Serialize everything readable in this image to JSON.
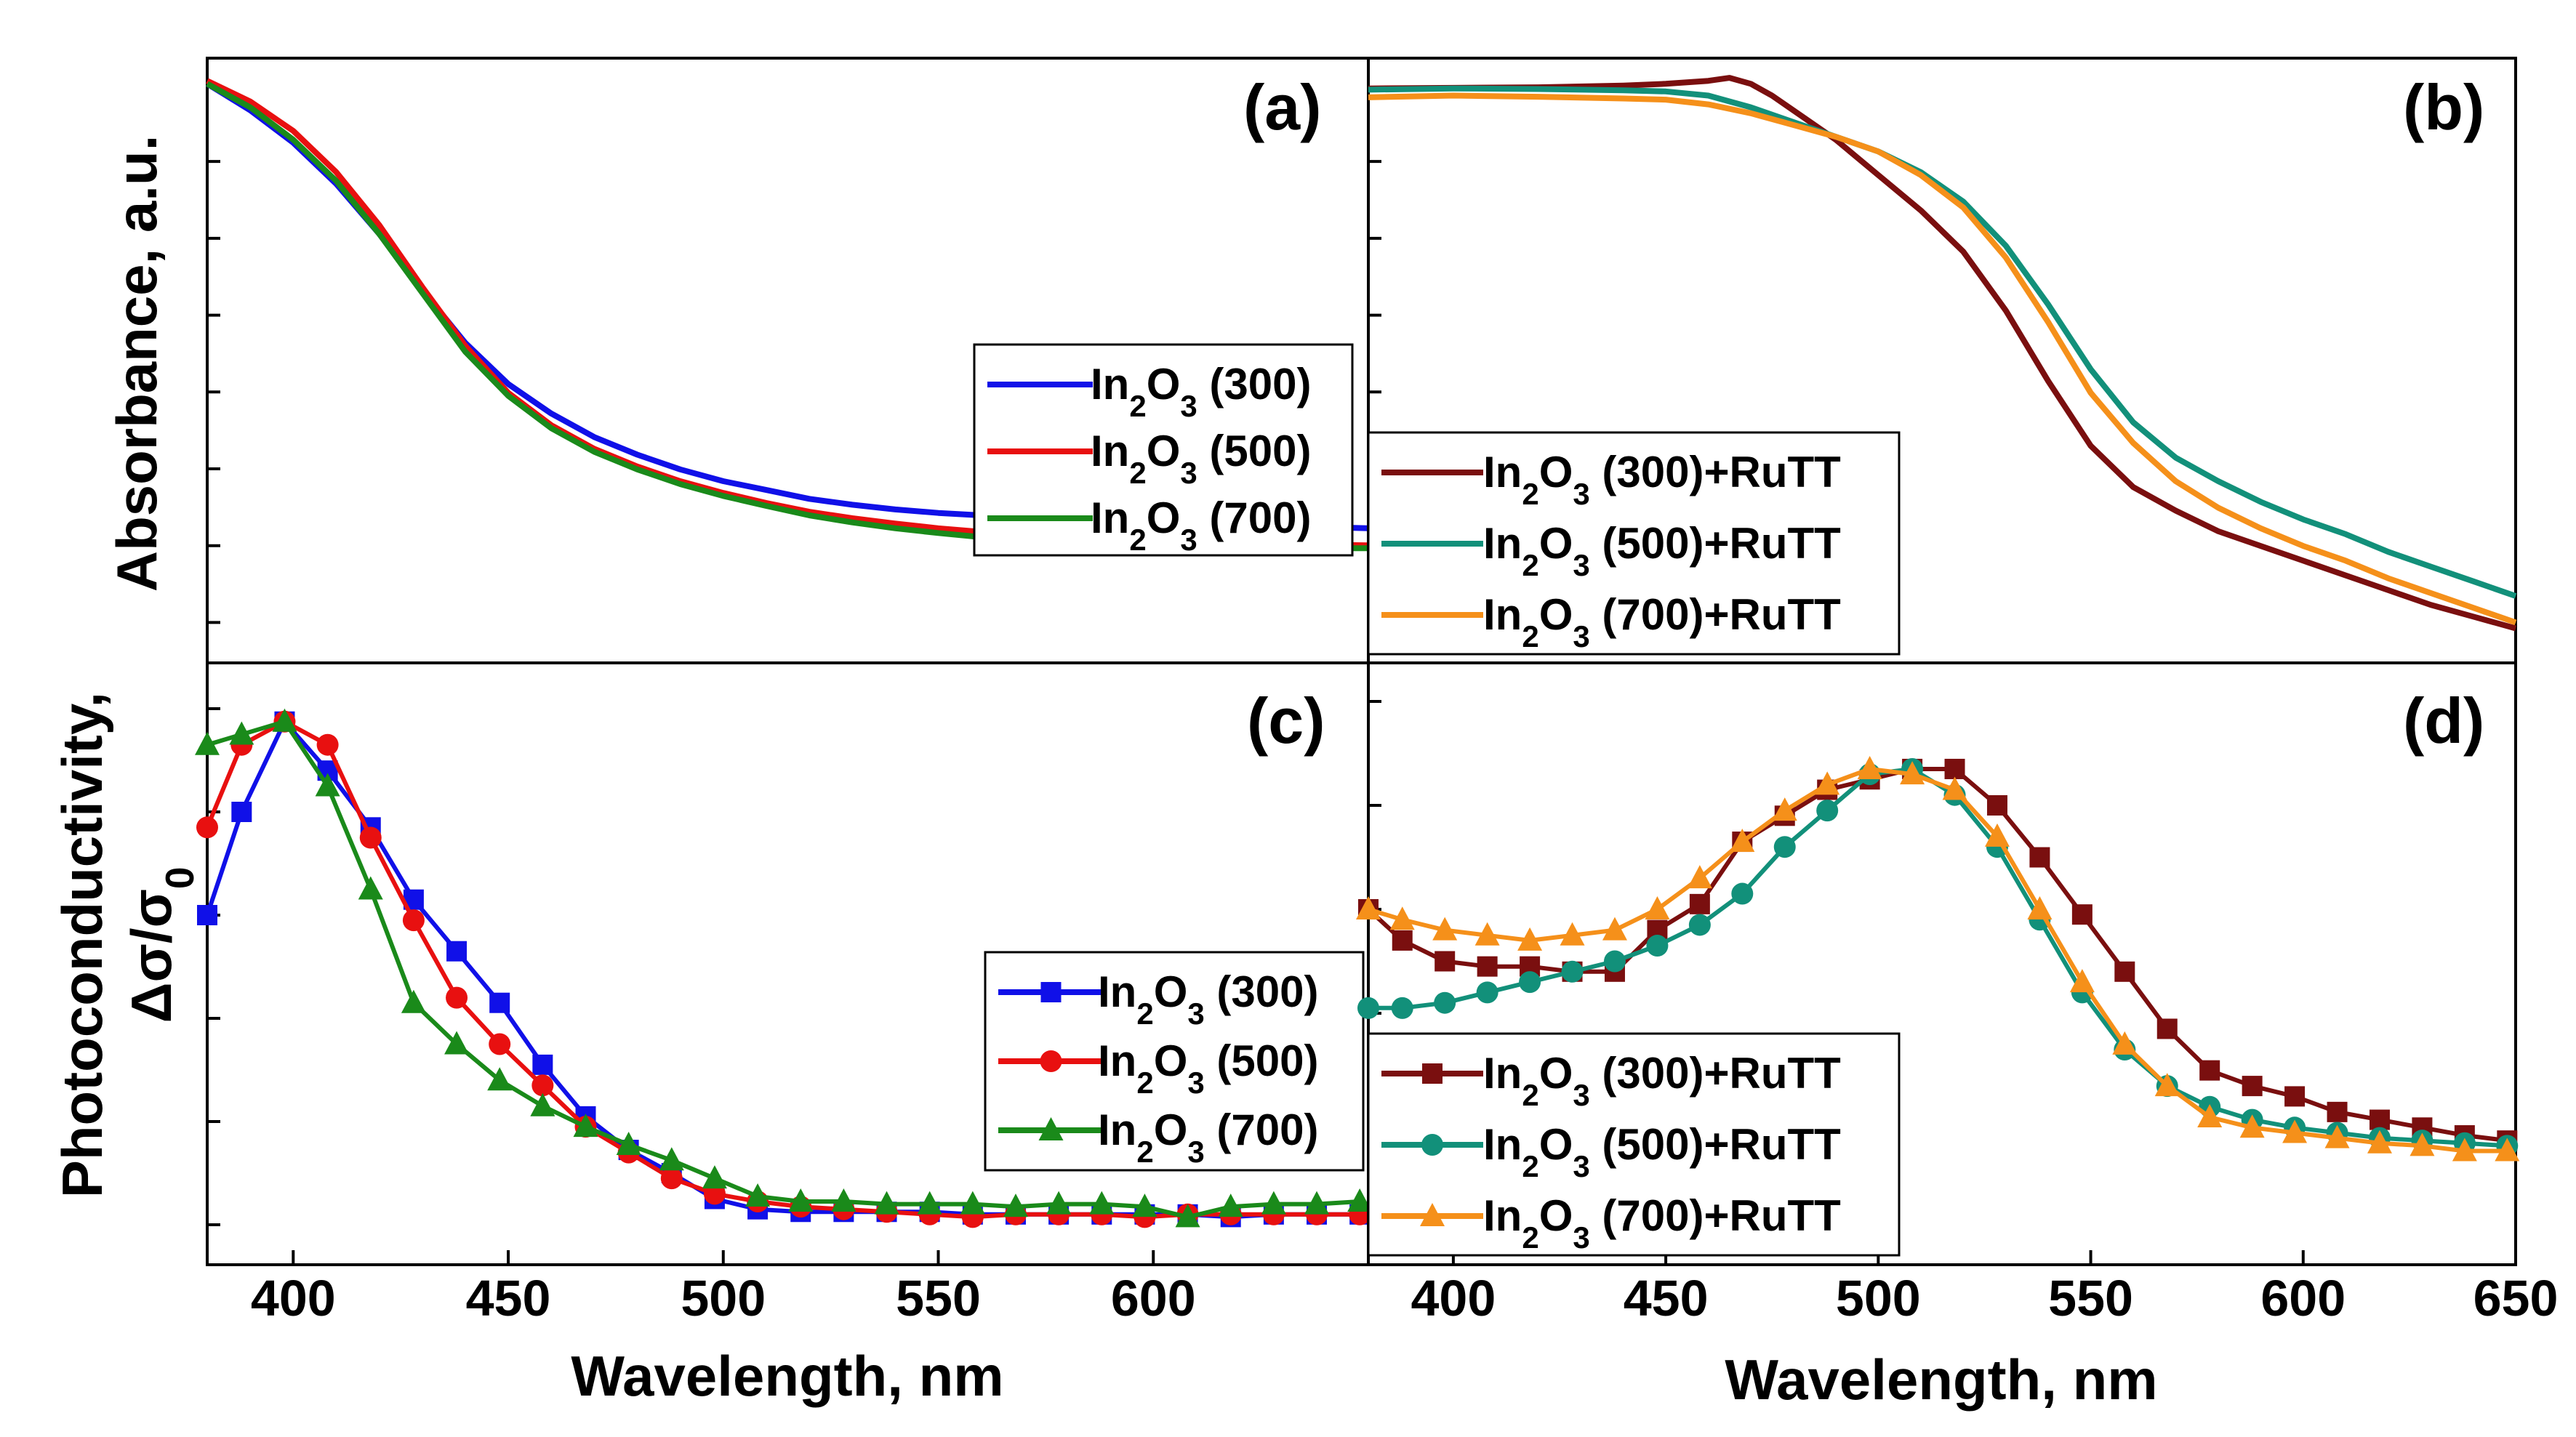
{
  "chart_data": [
    {
      "panel": "(a)",
      "type": "line",
      "ylabel": "Absorbance, a.u.",
      "xlim": [
        380,
        650
      ],
      "ylim": [
        0,
        1
      ],
      "legend_position": "center-right",
      "series": [
        {
          "name": "In2O3 (300)",
          "name_parts": {
            "a": "In",
            "s1": "2",
            "b": "O",
            "s2": "3",
            "c": " (300)"
          },
          "color": "#1010e8",
          "x": [
            380,
            390,
            400,
            410,
            420,
            430,
            440,
            450,
            460,
            470,
            480,
            490,
            500,
            510,
            520,
            530,
            540,
            550,
            560,
            570,
            580,
            590,
            600,
            610,
            620,
            630,
            640,
            650
          ],
          "y": [
            0.975,
            0.93,
            0.875,
            0.805,
            0.72,
            0.625,
            0.535,
            0.465,
            0.415,
            0.375,
            0.345,
            0.32,
            0.3,
            0.285,
            0.27,
            0.26,
            0.252,
            0.246,
            0.242,
            0.238,
            0.235,
            0.232,
            0.23,
            0.228,
            0.226,
            0.224,
            0.222,
            0.22
          ]
        },
        {
          "name": "In2O3 (500)",
          "name_parts": {
            "a": "In",
            "s1": "2",
            "b": "O",
            "s2": "3",
            "c": " (500)"
          },
          "color": "#e81010",
          "x": [
            380,
            390,
            400,
            410,
            420,
            430,
            440,
            450,
            460,
            470,
            480,
            490,
            500,
            510,
            520,
            530,
            540,
            550,
            560,
            570,
            580,
            590,
            600,
            610,
            620,
            630,
            640,
            650
          ],
          "y": [
            0.98,
            0.945,
            0.895,
            0.825,
            0.735,
            0.63,
            0.53,
            0.45,
            0.395,
            0.355,
            0.325,
            0.3,
            0.28,
            0.263,
            0.248,
            0.237,
            0.228,
            0.22,
            0.214,
            0.209,
            0.205,
            0.202,
            0.199,
            0.197,
            0.195,
            0.194,
            0.192,
            0.191
          ]
        },
        {
          "name": "In2O3 (700)",
          "name_parts": {
            "a": "In",
            "s1": "2",
            "b": "O",
            "s2": "3",
            "c": " (700)"
          },
          "color": "#1a8a1a",
          "x": [
            380,
            390,
            400,
            410,
            420,
            430,
            440,
            450,
            460,
            470,
            480,
            490,
            500,
            510,
            520,
            530,
            540,
            550,
            560,
            570,
            580,
            590,
            600,
            610,
            620,
            630,
            640,
            650
          ],
          "y": [
            0.975,
            0.935,
            0.88,
            0.81,
            0.72,
            0.62,
            0.52,
            0.445,
            0.39,
            0.35,
            0.32,
            0.295,
            0.275,
            0.258,
            0.242,
            0.23,
            0.22,
            0.212,
            0.205,
            0.2,
            0.195,
            0.192,
            0.19,
            0.188,
            0.187,
            0.186,
            0.186,
            0.186
          ]
        }
      ]
    },
    {
      "panel": "(b)",
      "type": "line",
      "xlim": [
        380,
        650
      ],
      "ylim": [
        0,
        1
      ],
      "legend_position": "center-left",
      "series": [
        {
          "name": "In2O3 (300)+RuTT",
          "name_parts": {
            "a": "In",
            "s1": "2",
            "b": "O",
            "s2": "3",
            "c": " (300)+RuTT"
          },
          "color": "#7a0f0f",
          "x": [
            380,
            400,
            420,
            440,
            450,
            460,
            465,
            470,
            475,
            480,
            490,
            500,
            510,
            520,
            530,
            540,
            550,
            560,
            570,
            580,
            590,
            600,
            610,
            620,
            630,
            640,
            650
          ],
          "y": [
            0.967,
            0.968,
            0.969,
            0.972,
            0.975,
            0.98,
            0.985,
            0.975,
            0.955,
            0.93,
            0.88,
            0.82,
            0.76,
            0.69,
            0.59,
            0.47,
            0.36,
            0.29,
            0.25,
            0.215,
            0.19,
            0.165,
            0.14,
            0.115,
            0.09,
            0.07,
            0.05
          ]
        },
        {
          "name": "In2O3 (500)+RuTT",
          "name_parts": {
            "a": "In",
            "s1": "2",
            "b": "O",
            "s2": "3",
            "c": " (500)+RuTT"
          },
          "color": "#12907a",
          "x": [
            380,
            400,
            420,
            440,
            450,
            460,
            470,
            480,
            490,
            500,
            510,
            520,
            530,
            540,
            550,
            560,
            570,
            580,
            590,
            600,
            610,
            620,
            630,
            640,
            650
          ],
          "y": [
            0.965,
            0.967,
            0.966,
            0.964,
            0.962,
            0.955,
            0.935,
            0.91,
            0.885,
            0.86,
            0.825,
            0.775,
            0.7,
            0.6,
            0.49,
            0.4,
            0.34,
            0.3,
            0.265,
            0.235,
            0.21,
            0.18,
            0.155,
            0.13,
            0.105
          ]
        },
        {
          "name": "In2O3 (700)+RuTT",
          "name_parts": {
            "a": "In",
            "s1": "2",
            "b": "O",
            "s2": "3",
            "c": " (700)+RuTT"
          },
          "color": "#f5901a",
          "x": [
            380,
            400,
            420,
            440,
            450,
            460,
            470,
            480,
            490,
            500,
            510,
            520,
            530,
            540,
            550,
            560,
            570,
            580,
            590,
            600,
            610,
            620,
            630,
            640,
            650
          ],
          "y": [
            0.952,
            0.955,
            0.953,
            0.95,
            0.948,
            0.94,
            0.925,
            0.905,
            0.885,
            0.86,
            0.82,
            0.765,
            0.68,
            0.57,
            0.45,
            0.365,
            0.3,
            0.255,
            0.22,
            0.19,
            0.165,
            0.135,
            0.11,
            0.085,
            0.06
          ]
        }
      ]
    },
    {
      "panel": "(c)",
      "type": "line",
      "ylabel": "Photoconductivity,",
      "ylabel2": "Δσ/σ0",
      "ylabel2_parts": {
        "main": "Δσ/σ",
        "sub": "0"
      },
      "xlabel": "Wavelength, nm",
      "xlim": [
        380,
        650
      ],
      "ylim": [
        0,
        1
      ],
      "xticks": [
        400,
        450,
        500,
        550,
        600
      ],
      "legend_position": "center-right",
      "series": [
        {
          "name": "In2O3 (300)",
          "name_parts": {
            "a": "In",
            "s1": "2",
            "b": "O",
            "s2": "3",
            "c": " (300)"
          },
          "color": "#1010e8",
          "marker": "square",
          "x": [
            380,
            388,
            398,
            408,
            418,
            428,
            438,
            448,
            458,
            468,
            478,
            488,
            498,
            508,
            518,
            528,
            538,
            548,
            558,
            568,
            578,
            588,
            598,
            608,
            618,
            628,
            638,
            648
          ],
          "y": [
            0.6,
            0.8,
            0.975,
            0.88,
            0.77,
            0.63,
            0.53,
            0.43,
            0.31,
            0.21,
            0.145,
            0.1,
            0.05,
            0.03,
            0.025,
            0.025,
            0.025,
            0.025,
            0.02,
            0.02,
            0.02,
            0.02,
            0.02,
            0.02,
            0.015,
            0.02,
            0.02,
            0.02
          ]
        },
        {
          "name": "In2O3 (500)",
          "name_parts": {
            "a": "In",
            "s1": "2",
            "b": "O",
            "s2": "3",
            "c": " (500)"
          },
          "color": "#e81010",
          "marker": "circle",
          "x": [
            380,
            388,
            398,
            408,
            418,
            428,
            438,
            448,
            458,
            468,
            478,
            488,
            498,
            508,
            518,
            528,
            538,
            548,
            558,
            568,
            578,
            588,
            598,
            608,
            618,
            628,
            638,
            648
          ],
          "y": [
            0.77,
            0.93,
            0.975,
            0.93,
            0.75,
            0.59,
            0.44,
            0.35,
            0.27,
            0.19,
            0.14,
            0.09,
            0.06,
            0.045,
            0.035,
            0.03,
            0.025,
            0.02,
            0.015,
            0.02,
            0.02,
            0.02,
            0.015,
            0.02,
            0.02,
            0.02,
            0.02,
            0.02
          ]
        },
        {
          "name": "In2O3 (700)",
          "name_parts": {
            "a": "In",
            "s1": "2",
            "b": "O",
            "s2": "3",
            "c": " (700)"
          },
          "color": "#1a8a1a",
          "marker": "triangle",
          "x": [
            380,
            388,
            398,
            408,
            418,
            428,
            438,
            448,
            458,
            468,
            478,
            488,
            498,
            508,
            518,
            528,
            538,
            548,
            558,
            568,
            578,
            588,
            598,
            608,
            618,
            628,
            638,
            648
          ],
          "y": [
            0.93,
            0.95,
            0.975,
            0.85,
            0.65,
            0.43,
            0.35,
            0.28,
            0.23,
            0.19,
            0.155,
            0.125,
            0.09,
            0.055,
            0.045,
            0.045,
            0.04,
            0.04,
            0.04,
            0.035,
            0.04,
            0.04,
            0.035,
            0.015,
            0.035,
            0.04,
            0.04,
            0.045
          ]
        }
      ]
    },
    {
      "panel": "(d)",
      "type": "line",
      "xlabel": "Wavelength, nm",
      "xlim": [
        380,
        650
      ],
      "ylim": [
        0,
        1
      ],
      "xticks": [
        400,
        450,
        500,
        550,
        600,
        650
      ],
      "legend_position": "bottom-left",
      "series": [
        {
          "name": "In2O3 (300)+RuTT",
          "name_parts": {
            "a": "In",
            "s1": "2",
            "b": "O",
            "s2": "3",
            "c": " (300)+RuTT"
          },
          "color": "#7a0f0f",
          "marker": "square",
          "x": [
            380,
            388,
            398,
            408,
            418,
            428,
            438,
            448,
            458,
            468,
            478,
            488,
            498,
            508,
            518,
            528,
            538,
            548,
            558,
            568,
            578,
            588,
            598,
            608,
            618,
            628,
            638,
            648
          ],
          "y": [
            0.6,
            0.54,
            0.5,
            0.49,
            0.49,
            0.48,
            0.48,
            0.56,
            0.61,
            0.73,
            0.78,
            0.83,
            0.85,
            0.87,
            0.87,
            0.8,
            0.7,
            0.59,
            0.48,
            0.37,
            0.29,
            0.26,
            0.24,
            0.21,
            0.195,
            0.18,
            0.165,
            0.155
          ]
        },
        {
          "name": "In2O3 (500)+RuTT",
          "name_parts": {
            "a": "In",
            "s1": "2",
            "b": "O",
            "s2": "3",
            "c": " (500)+RuTT"
          },
          "color": "#12907a",
          "marker": "circle",
          "x": [
            380,
            388,
            398,
            408,
            418,
            428,
            438,
            448,
            458,
            468,
            478,
            488,
            498,
            508,
            518,
            528,
            538,
            548,
            558,
            568,
            578,
            588,
            598,
            608,
            618,
            628,
            638,
            648
          ],
          "y": [
            0.41,
            0.41,
            0.42,
            0.44,
            0.46,
            0.48,
            0.5,
            0.53,
            0.57,
            0.63,
            0.72,
            0.79,
            0.86,
            0.87,
            0.82,
            0.72,
            0.58,
            0.44,
            0.33,
            0.26,
            0.22,
            0.195,
            0.18,
            0.17,
            0.16,
            0.155,
            0.15,
            0.145
          ]
        },
        {
          "name": "In2O3 (700)+RuTT",
          "name_parts": {
            "a": "In",
            "s1": "2",
            "b": "O",
            "s2": "3",
            "c": " (700)+RuTT"
          },
          "color": "#f5901a",
          "marker": "triangle",
          "x": [
            380,
            388,
            398,
            408,
            418,
            428,
            438,
            448,
            458,
            468,
            478,
            488,
            498,
            508,
            518,
            528,
            538,
            548,
            558,
            568,
            578,
            588,
            598,
            608,
            618,
            628,
            638,
            648
          ],
          "y": [
            0.6,
            0.58,
            0.56,
            0.55,
            0.54,
            0.55,
            0.56,
            0.6,
            0.66,
            0.73,
            0.79,
            0.84,
            0.87,
            0.86,
            0.83,
            0.74,
            0.6,
            0.46,
            0.34,
            0.26,
            0.2,
            0.18,
            0.17,
            0.16,
            0.15,
            0.145,
            0.135,
            0.135
          ]
        }
      ]
    }
  ]
}
